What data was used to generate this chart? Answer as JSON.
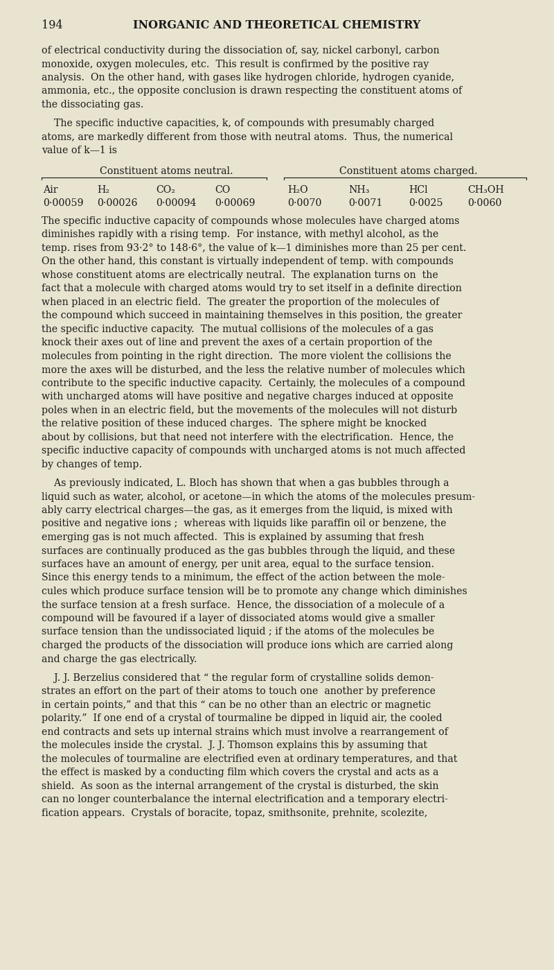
{
  "bg_color": "#e8e4d0",
  "text_color": "#1a1a1a",
  "page_number": "194",
  "page_header": "INORGANIC AND THEORETICAL CHEMISTRY",
  "body_fs": 10.2,
  "header_fs": 11.5,
  "table_header1": "Constituent atoms neutral.",
  "table_header2": "Constituent atoms charged.",
  "table_col1_labels": [
    "Air",
    "H₂",
    "CO₂",
    "CO"
  ],
  "table_col1_values": [
    "0·00059",
    "0·00026",
    "0·00094",
    "0·00069"
  ],
  "table_col2_labels": [
    "H₂O",
    "NH₃",
    "HCl",
    "CH₃OH"
  ],
  "table_col2_values": [
    "0·0070",
    "0·0071",
    "0·0025",
    "0·0060"
  ],
  "p0_lines": [
    "of electrical conductivity during the dissociation of, say, nickel carbonyl, carbon",
    "monoxide, oxygen molecules, etc.  This result is confirmed by the positive ray",
    "analysis.  On the other hand, with gases like hydrogen chloride, hydrogen cyanide,",
    "ammonia, etc., the opposite conclusion is drawn respecting the constituent atoms of",
    "the dissociating gas."
  ],
  "p1_lines": [
    "    The specific inductive capacities, k, of compounds with presumably charged",
    "atoms, are markedly different from those with neutral atoms.  Thus, the numerical",
    "value of k—1 is"
  ],
  "p2_lines": [
    "The specific inductive capacity of compounds whose molecules have charged atoms",
    "diminishes rapidly with a rising temp.  For instance, with methyl alcohol, as the",
    "temp. rises from 93·2° to 148·6°, the value of k—1 diminishes more than 25 per cent.",
    "On the other hand, this constant is virtually independent of temp. with compounds",
    "whose constituent atoms are electrically neutral.  The explanation turns on  the",
    "fact that a molecule with charged atoms would try to set itself in a definite direction",
    "when placed in an electric field.  The greater the proportion of the molecules of",
    "the compound which succeed in maintaining themselves in this position, the greater",
    "the specific inductive capacity.  The mutual collisions of the molecules of a gas",
    "knock their axes out of line and prevent the axes of a certain proportion of the",
    "molecules from pointing in the right direction.  The more violent the collisions the",
    "more the axes will be disturbed, and the less the relative number of molecules which",
    "contribute to the specific inductive capacity.  Certainly, the molecules of a compound",
    "with uncharged atoms will have positive and negative charges induced at opposite",
    "poles when in an electric field, but the movements of the molecules will not disturb",
    "the relative position of these induced charges.  The sphere might be knocked",
    "about by collisions, but that need not interfere with the electrification.  Hence, the",
    "specific inductive capacity of compounds with uncharged atoms is not much affected",
    "by changes of temp."
  ],
  "p3_lines": [
    "    As previously indicated, L. Bloch has shown that when a gas bubbles through a",
    "liquid such as water, alcohol, or acetone—in which the atoms of the molecules presum-",
    "ably carry electrical charges—the gas, as it emerges from the liquid, is mixed with",
    "positive and negative ions ;  whereas with liquids like paraffin oil or benzene, the",
    "emerging gas is not much affected.  This is explained by assuming that fresh",
    "surfaces are continually produced as the gas bubbles through the liquid, and these",
    "surfaces have an amount of energy, per unit area, equal to the surface tension.",
    "Since this energy tends to a minimum, the effect of the action between the mole-",
    "cules which produce surface tension will be to promote any change which diminishes",
    "the surface tension at a fresh surface.  Hence, the dissociation of a molecule of a",
    "compound will be favoured if a layer of dissociated atoms would give a smaller",
    "surface tension than the undissociated liquid ; if the atoms of the molecules be",
    "charged the products of the dissociation will produce ions which are carried along",
    "and charge the gas electrically."
  ],
  "p4_lines": [
    "    J. J. Berzelius considered that “ the regular form of crystalline solids demon-",
    "strates an effort on the part of their atoms to touch one  another by preference",
    "in certain points,” and that this “ can be no other than an electric or magnetic",
    "polarity.”  If one end of a crystal of tourmaline be dipped in liquid air, the cooled",
    "end contracts and sets up internal strains which must involve a rearrangement of",
    "the molecules inside the crystal.  J. J. Thomson explains this by assuming that",
    "the molecules of tourmaline are electrified even at ordinary temperatures, and that",
    "the effect is masked by a conducting film which covers the crystal and acts as a",
    "shield.  As soon as the internal arrangement of the crystal is disturbed, the skin",
    "can no longer counterbalance the internal electrification and a temporary electri-",
    "fication appears.  Crystals of boracite, topaz, smithsonite, prehnite, scolezite,"
  ]
}
